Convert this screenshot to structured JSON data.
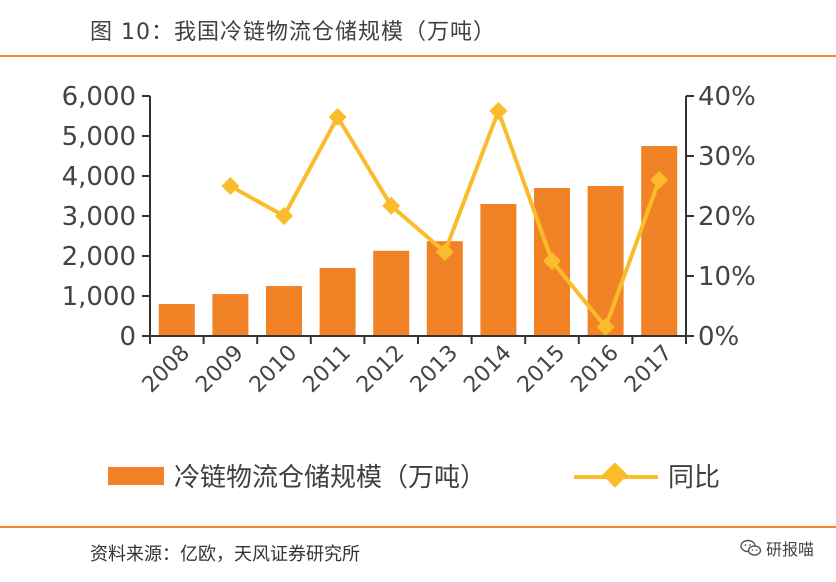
{
  "title": "图 10：我国冷链物流仓储规模（万吨）",
  "source": "资料来源：亿欧，天风证券研究所",
  "watermark": "研报喵",
  "colors": {
    "bar": "#f28226",
    "line": "#fbbc2b",
    "rule": "#f08a32",
    "axis": "#333333"
  },
  "chart_data": {
    "type": "bar",
    "categories": [
      "2008",
      "2009",
      "2010",
      "2011",
      "2012",
      "2013",
      "2014",
      "2015",
      "2016",
      "2017"
    ],
    "series": [
      {
        "name": "冷链物流仓储规模（万吨）",
        "type": "bar",
        "axis": "left",
        "values": [
          800,
          1050,
          1250,
          1700,
          2130,
          2370,
          3300,
          3700,
          3750,
          4750
        ]
      },
      {
        "name": "同比",
        "type": "line",
        "axis": "right",
        "values": [
          null,
          25.0,
          20.0,
          36.5,
          21.7,
          14.0,
          37.5,
          12.5,
          1.5,
          26.0
        ]
      }
    ],
    "y_left": {
      "min": 0,
      "max": 6000,
      "ticks": [
        0,
        1000,
        2000,
        3000,
        4000,
        5000,
        6000
      ],
      "tick_labels": [
        "0",
        "1,000",
        "2,000",
        "3,000",
        "4,000",
        "5,000",
        "6,000"
      ]
    },
    "y_right": {
      "min": 0,
      "max": 40,
      "ticks": [
        0,
        10,
        20,
        30,
        40
      ],
      "tick_labels": [
        "0%",
        "10%",
        "20%",
        "30%",
        "40%"
      ]
    },
    "legend": {
      "position": "bottom",
      "entries": [
        "冷链物流仓储规模（万吨）",
        "同比"
      ]
    }
  }
}
